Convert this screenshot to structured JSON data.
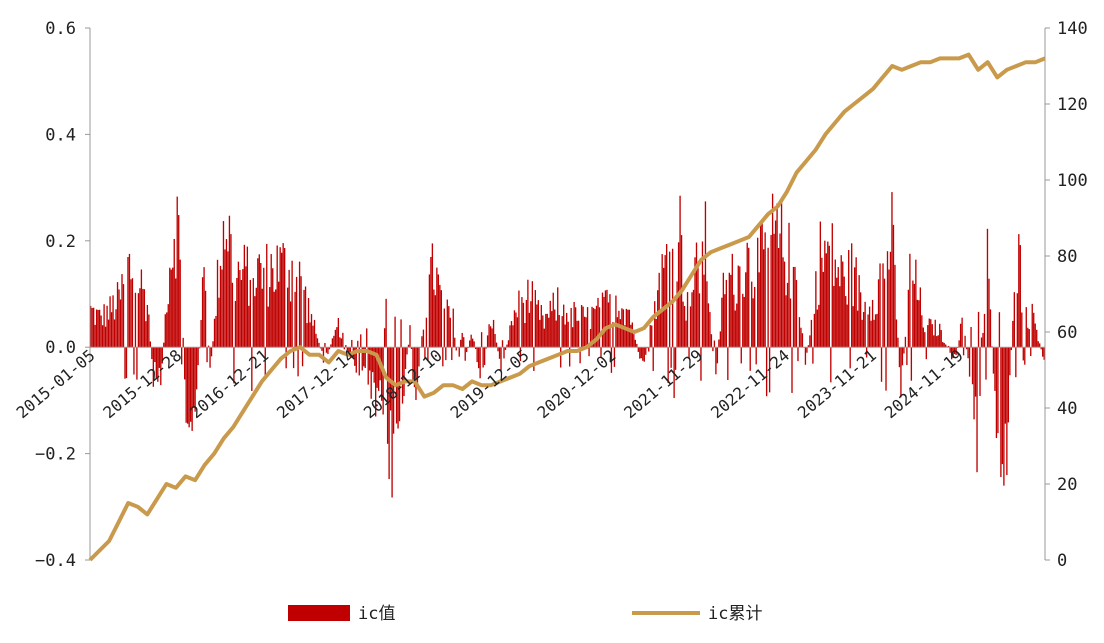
{
  "chart_data": {
    "type": "bar+line",
    "x_tick_labels": [
      "2015-01-05",
      "2015-12-28",
      "2016-12-21",
      "2017-12-14",
      "2018-12-10",
      "2019-12-05",
      "2020-12-02",
      "2021-11-29",
      "2022-11-24",
      "2023-11-21",
      "2024-11-19"
    ],
    "left_axis": {
      "ticks": [
        "0.6",
        "0.4",
        "0.2",
        "0.0",
        "−0.2",
        "−0.4"
      ],
      "ylim": [
        -0.4,
        0.6
      ]
    },
    "right_axis": {
      "ticks": [
        "140",
        "120",
        "100",
        "80",
        "60",
        "40",
        "20",
        "0"
      ],
      "ylim": [
        0,
        140
      ]
    },
    "legend_position": "bottom",
    "series": [
      {
        "name": "ic值",
        "type": "bar",
        "axis": "left",
        "color": "#c00000"
      },
      {
        "name": "ic累计",
        "type": "line",
        "axis": "right",
        "color": "#c99a4b"
      }
    ],
    "bar_envelope": [
      {
        "t": 0.0,
        "v": 0.1
      },
      {
        "t": 0.01,
        "v": 0.08
      },
      {
        "t": 0.02,
        "v": 0.1
      },
      {
        "t": 0.03,
        "v": 0.13
      },
      {
        "t": 0.04,
        "v": 0.22
      },
      {
        "t": 0.05,
        "v": 0.19
      },
      {
        "t": 0.06,
        "v": 0.12
      },
      {
        "t": 0.065,
        "v": -0.08
      },
      {
        "t": 0.075,
        "v": -0.07
      },
      {
        "t": 0.08,
        "v": 0.17
      },
      {
        "t": 0.09,
        "v": 0.38
      },
      {
        "t": 0.095,
        "v": 0.18
      },
      {
        "t": 0.1,
        "v": -0.18
      },
      {
        "t": 0.11,
        "v": -0.21
      },
      {
        "t": 0.12,
        "v": 0.28
      },
      {
        "t": 0.125,
        "v": -0.1
      },
      {
        "t": 0.135,
        "v": 0.24
      },
      {
        "t": 0.142,
        "v": 0.38
      },
      {
        "t": 0.15,
        "v": 0.2
      },
      {
        "t": 0.16,
        "v": 0.2
      },
      {
        "t": 0.17,
        "v": 0.21
      },
      {
        "t": 0.18,
        "v": 0.2
      },
      {
        "t": 0.195,
        "v": 0.22
      },
      {
        "t": 0.21,
        "v": 0.22
      },
      {
        "t": 0.22,
        "v": 0.18
      },
      {
        "t": 0.235,
        "v": 0.05
      },
      {
        "t": 0.245,
        "v": -0.04
      },
      {
        "t": 0.26,
        "v": 0.06
      },
      {
        "t": 0.275,
        "v": -0.05
      },
      {
        "t": 0.29,
        "v": -0.1
      },
      {
        "t": 0.305,
        "v": -0.18
      },
      {
        "t": 0.315,
        "v": -0.31
      },
      {
        "t": 0.325,
        "v": -0.2
      },
      {
        "t": 0.335,
        "v": 0.05
      },
      {
        "t": 0.34,
        "v": -0.14
      },
      {
        "t": 0.35,
        "v": 0.1
      },
      {
        "t": 0.36,
        "v": 0.22
      },
      {
        "t": 0.37,
        "v": 0.1
      },
      {
        "t": 0.38,
        "v": 0.08
      },
      {
        "t": 0.39,
        "v": -0.08
      },
      {
        "t": 0.4,
        "v": 0.05
      },
      {
        "t": 0.41,
        "v": -0.1
      },
      {
        "t": 0.42,
        "v": 0.1
      },
      {
        "t": 0.43,
        "v": -0.06
      },
      {
        "t": 0.445,
        "v": 0.1
      },
      {
        "t": 0.46,
        "v": 0.14
      },
      {
        "t": 0.475,
        "v": 0.07
      },
      {
        "t": 0.49,
        "v": 0.12
      },
      {
        "t": 0.505,
        "v": 0.09
      },
      {
        "t": 0.52,
        "v": 0.08
      },
      {
        "t": 0.535,
        "v": 0.1
      },
      {
        "t": 0.55,
        "v": 0.14
      },
      {
        "t": 0.565,
        "v": 0.1
      },
      {
        "t": 0.58,
        "v": -0.08
      },
      {
        "t": 0.59,
        "v": 0.12
      },
      {
        "t": 0.6,
        "v": 0.2
      },
      {
        "t": 0.61,
        "v": 0.28
      },
      {
        "t": 0.618,
        "v": 0.32
      },
      {
        "t": 0.625,
        "v": 0.1
      },
      {
        "t": 0.635,
        "v": 0.2
      },
      {
        "t": 0.645,
        "v": 0.28
      },
      {
        "t": 0.655,
        "v": -0.1
      },
      {
        "t": 0.665,
        "v": 0.2
      },
      {
        "t": 0.675,
        "v": 0.18
      },
      {
        "t": 0.69,
        "v": 0.24
      },
      {
        "t": 0.7,
        "v": 0.22
      },
      {
        "t": 0.715,
        "v": 0.3
      },
      {
        "t": 0.725,
        "v": 0.28
      },
      {
        "t": 0.74,
        "v": 0.2
      },
      {
        "t": 0.75,
        "v": -0.05
      },
      {
        "t": 0.765,
        "v": 0.25
      },
      {
        "t": 0.775,
        "v": 0.26
      },
      {
        "t": 0.79,
        "v": 0.18
      },
      {
        "t": 0.8,
        "v": 0.21
      },
      {
        "t": 0.81,
        "v": 0.1
      },
      {
        "t": 0.825,
        "v": 0.16
      },
      {
        "t": 0.84,
        "v": 0.32
      },
      {
        "t": 0.85,
        "v": -0.12
      },
      {
        "t": 0.86,
        "v": 0.23
      },
      {
        "t": 0.875,
        "v": 0.06
      },
      {
        "t": 0.89,
        "v": 0.05
      },
      {
        "t": 0.905,
        "v": -0.05
      },
      {
        "t": 0.915,
        "v": 0.08
      },
      {
        "t": 0.93,
        "v": -0.28
      },
      {
        "t": 0.94,
        "v": 0.26
      },
      {
        "t": 0.95,
        "v": -0.23
      },
      {
        "t": 0.96,
        "v": -0.31
      },
      {
        "t": 0.97,
        "v": 0.31
      },
      {
        "t": 0.98,
        "v": 0.1
      },
      {
        "t": 0.99,
        "v": 0.08
      },
      {
        "t": 1.0,
        "v": -0.05
      }
    ],
    "line_points": [
      {
        "t": 0.0,
        "v": 0
      },
      {
        "t": 0.02,
        "v": 5
      },
      {
        "t": 0.03,
        "v": 10
      },
      {
        "t": 0.04,
        "v": 15
      },
      {
        "t": 0.05,
        "v": 14
      },
      {
        "t": 0.06,
        "v": 12
      },
      {
        "t": 0.07,
        "v": 16
      },
      {
        "t": 0.08,
        "v": 20
      },
      {
        "t": 0.09,
        "v": 19
      },
      {
        "t": 0.1,
        "v": 22
      },
      {
        "t": 0.11,
        "v": 21
      },
      {
        "t": 0.12,
        "v": 25
      },
      {
        "t": 0.13,
        "v": 28
      },
      {
        "t": 0.14,
        "v": 32
      },
      {
        "t": 0.15,
        "v": 35
      },
      {
        "t": 0.16,
        "v": 39
      },
      {
        "t": 0.17,
        "v": 43
      },
      {
        "t": 0.18,
        "v": 47
      },
      {
        "t": 0.19,
        "v": 50
      },
      {
        "t": 0.2,
        "v": 53
      },
      {
        "t": 0.21,
        "v": 55
      },
      {
        "t": 0.22,
        "v": 56
      },
      {
        "t": 0.23,
        "v": 54
      },
      {
        "t": 0.24,
        "v": 54
      },
      {
        "t": 0.25,
        "v": 52
      },
      {
        "t": 0.26,
        "v": 55
      },
      {
        "t": 0.27,
        "v": 54
      },
      {
        "t": 0.28,
        "v": 55
      },
      {
        "t": 0.29,
        "v": 55
      },
      {
        "t": 0.3,
        "v": 54
      },
      {
        "t": 0.31,
        "v": 48
      },
      {
        "t": 0.32,
        "v": 46
      },
      {
        "t": 0.33,
        "v": 47
      },
      {
        "t": 0.34,
        "v": 47
      },
      {
        "t": 0.35,
        "v": 43
      },
      {
        "t": 0.36,
        "v": 44
      },
      {
        "t": 0.37,
        "v": 46
      },
      {
        "t": 0.38,
        "v": 46
      },
      {
        "t": 0.39,
        "v": 45
      },
      {
        "t": 0.4,
        "v": 47
      },
      {
        "t": 0.41,
        "v": 46
      },
      {
        "t": 0.42,
        "v": 46
      },
      {
        "t": 0.43,
        "v": 47
      },
      {
        "t": 0.44,
        "v": 48
      },
      {
        "t": 0.45,
        "v": 49
      },
      {
        "t": 0.46,
        "v": 51
      },
      {
        "t": 0.47,
        "v": 52
      },
      {
        "t": 0.48,
        "v": 53
      },
      {
        "t": 0.49,
        "v": 54
      },
      {
        "t": 0.5,
        "v": 55
      },
      {
        "t": 0.51,
        "v": 55
      },
      {
        "t": 0.52,
        "v": 56
      },
      {
        "t": 0.53,
        "v": 58
      },
      {
        "t": 0.54,
        "v": 61
      },
      {
        "t": 0.55,
        "v": 62
      },
      {
        "t": 0.56,
        "v": 61
      },
      {
        "t": 0.57,
        "v": 60
      },
      {
        "t": 0.58,
        "v": 61
      },
      {
        "t": 0.59,
        "v": 64
      },
      {
        "t": 0.6,
        "v": 66
      },
      {
        "t": 0.61,
        "v": 68
      },
      {
        "t": 0.62,
        "v": 71
      },
      {
        "t": 0.63,
        "v": 75
      },
      {
        "t": 0.64,
        "v": 79
      },
      {
        "t": 0.65,
        "v": 81
      },
      {
        "t": 0.66,
        "v": 82
      },
      {
        "t": 0.67,
        "v": 83
      },
      {
        "t": 0.68,
        "v": 84
      },
      {
        "t": 0.69,
        "v": 85
      },
      {
        "t": 0.7,
        "v": 88
      },
      {
        "t": 0.71,
        "v": 91
      },
      {
        "t": 0.72,
        "v": 93
      },
      {
        "t": 0.73,
        "v": 97
      },
      {
        "t": 0.74,
        "v": 102
      },
      {
        "t": 0.75,
        "v": 105
      },
      {
        "t": 0.76,
        "v": 108
      },
      {
        "t": 0.77,
        "v": 112
      },
      {
        "t": 0.78,
        "v": 115
      },
      {
        "t": 0.79,
        "v": 118
      },
      {
        "t": 0.8,
        "v": 120
      },
      {
        "t": 0.81,
        "v": 122
      },
      {
        "t": 0.82,
        "v": 124
      },
      {
        "t": 0.83,
        "v": 127
      },
      {
        "t": 0.84,
        "v": 130
      },
      {
        "t": 0.85,
        "v": 129
      },
      {
        "t": 0.86,
        "v": 130
      },
      {
        "t": 0.87,
        "v": 131
      },
      {
        "t": 0.88,
        "v": 131
      },
      {
        "t": 0.89,
        "v": 132
      },
      {
        "t": 0.9,
        "v": 132
      },
      {
        "t": 0.91,
        "v": 132
      },
      {
        "t": 0.92,
        "v": 133
      },
      {
        "t": 0.93,
        "v": 129
      },
      {
        "t": 0.94,
        "v": 131
      },
      {
        "t": 0.95,
        "v": 127
      },
      {
        "t": 0.96,
        "v": 129
      },
      {
        "t": 0.97,
        "v": 130
      },
      {
        "t": 0.98,
        "v": 131
      },
      {
        "t": 0.99,
        "v": 131
      },
      {
        "t": 1.0,
        "v": 132
      }
    ]
  }
}
